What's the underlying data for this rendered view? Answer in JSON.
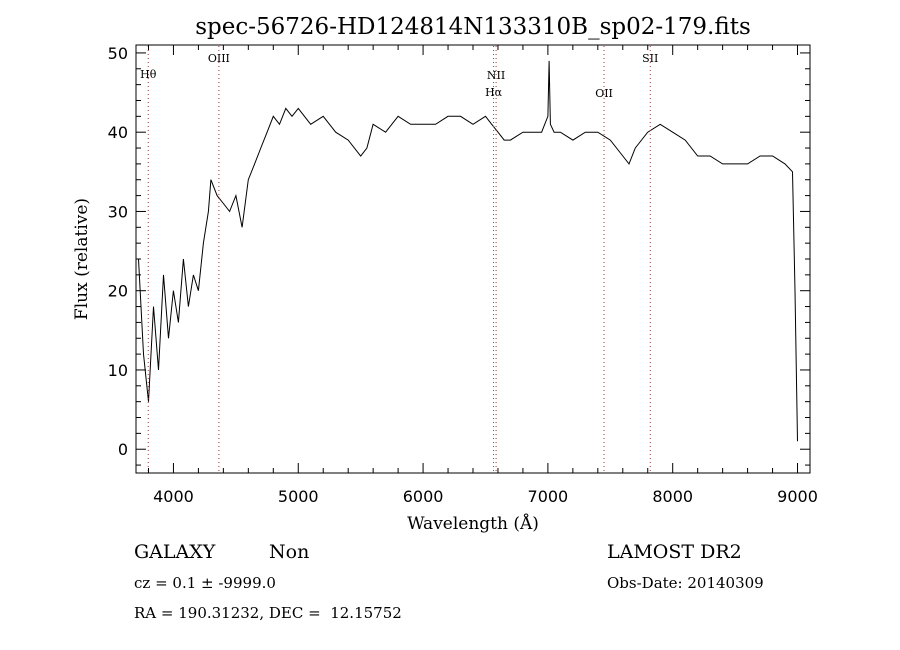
{
  "chart_data": {
    "type": "line",
    "title": "spec-56726-HD124814N133310B_sp02-179.fits",
    "xlabel": "Wavelength (Å)",
    "ylabel": "Flux (relative)",
    "xlim": [
      3700,
      9100
    ],
    "ylim": [
      -3,
      51
    ],
    "xticks": [
      4000,
      5000,
      6000,
      7000,
      8000,
      9000
    ],
    "yticks": [
      0,
      10,
      20,
      30,
      40,
      50
    ],
    "grid": false,
    "line_color": "#000000",
    "marker_color": "#b03030",
    "spectral_lines": [
      {
        "name": "Hθ",
        "wavelength": 3798
      },
      {
        "name": "OIII",
        "wavelength": 4364
      },
      {
        "name": "NII",
        "wavelength": 6585
      },
      {
        "name": "Hα",
        "wavelength": 6565
      },
      {
        "name": "OII",
        "wavelength": 7450
      },
      {
        "name": "SII",
        "wavelength": 7820
      }
    ],
    "series": [
      {
        "x": [
          3720,
          3760,
          3800,
          3840,
          3880,
          3920,
          3960,
          4000,
          4040,
          4080,
          4120,
          4160,
          4200,
          4240,
          4280,
          4300,
          4350,
          4400,
          4450,
          4500,
          4550,
          4600,
          4650,
          4700,
          4750,
          4800,
          4850,
          4900,
          4950,
          5000,
          5100,
          5200,
          5300,
          5400,
          5500,
          5550,
          5600,
          5700,
          5800,
          5900,
          6000,
          6100,
          6200,
          6300,
          6400,
          6500,
          6550,
          6600,
          6650,
          6700,
          6800,
          6900,
          6950,
          7000,
          7010,
          7020,
          7050,
          7100,
          7200,
          7300,
          7400,
          7500,
          7600,
          7650,
          7700,
          7800,
          7900,
          8000,
          8100,
          8200,
          8300,
          8400,
          8500,
          8600,
          8700,
          8800,
          8900,
          8960,
          8980,
          9000
        ],
        "y": [
          24,
          12,
          6,
          18,
          10,
          22,
          14,
          20,
          16,
          24,
          18,
          22,
          20,
          26,
          30,
          34,
          32,
          31,
          30,
          32,
          28,
          34,
          36,
          38,
          40,
          42,
          41,
          43,
          42,
          43,
          41,
          42,
          40,
          39,
          37,
          38,
          41,
          40,
          42,
          41,
          41,
          41,
          42,
          42,
          41,
          42,
          41,
          40,
          39,
          39,
          40,
          40,
          40,
          42,
          49,
          41,
          40,
          40,
          39,
          40,
          40,
          39,
          37,
          36,
          38,
          40,
          41,
          40,
          39,
          37,
          37,
          36,
          36,
          36,
          37,
          37,
          36,
          35,
          20,
          1
        ]
      }
    ]
  },
  "info": {
    "object_class": "GALAXY",
    "subclass": "Non",
    "cz_line": "cz = 0.1 ± -9999.0",
    "coords_line": "RA = 190.31232, DEC =  12.15752",
    "survey": "LAMOST DR2",
    "obs_date": "Obs-Date: 20140309"
  }
}
